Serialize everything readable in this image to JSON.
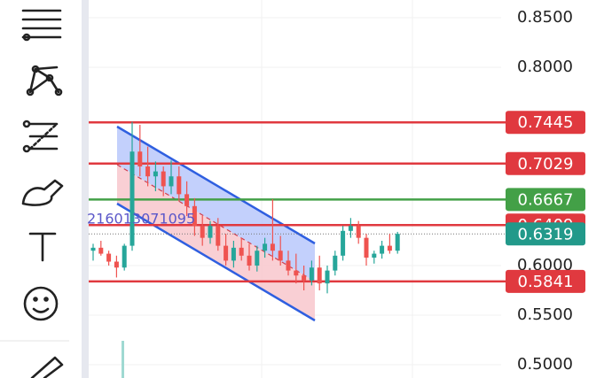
{
  "chart_data": {
    "type": "candlestick",
    "open": [
      0.615,
      0.618,
      0.612,
      0.604,
      0.598,
      0.62,
      0.715,
      0.7,
      0.69,
      0.695,
      0.68,
      0.69,
      0.672,
      0.66,
      0.64,
      0.628,
      0.64,
      0.62,
      0.605,
      0.618,
      0.61,
      0.6,
      0.615,
      0.622,
      0.615,
      0.605,
      0.595,
      0.59,
      0.585,
      0.598,
      0.582,
      0.595,
      0.61,
      0.635,
      0.64,
      0.628,
      0.608,
      0.612,
      0.62,
      0.615
    ],
    "high": [
      0.622,
      0.625,
      0.615,
      0.61,
      0.622,
      0.745,
      0.742,
      0.72,
      0.705,
      0.7,
      0.706,
      0.7,
      0.685,
      0.668,
      0.65,
      0.645,
      0.648,
      0.632,
      0.625,
      0.628,
      0.622,
      0.62,
      0.628,
      0.667,
      0.63,
      0.615,
      0.612,
      0.6,
      0.605,
      0.61,
      0.6,
      0.615,
      0.64,
      0.648,
      0.645,
      0.632,
      0.615,
      0.625,
      0.632,
      0.634
    ],
    "low": [
      0.605,
      0.61,
      0.6,
      0.588,
      0.595,
      0.615,
      0.69,
      0.68,
      0.675,
      0.67,
      0.672,
      0.665,
      0.65,
      0.63,
      0.62,
      0.622,
      0.615,
      0.6,
      0.598,
      0.605,
      0.595,
      0.594,
      0.608,
      0.605,
      0.6,
      0.59,
      0.582,
      0.575,
      0.58,
      0.575,
      0.572,
      0.59,
      0.605,
      0.628,
      0.622,
      0.6,
      0.602,
      0.607,
      0.612,
      0.612
    ],
    "close": [
      0.618,
      0.612,
      0.604,
      0.598,
      0.62,
      0.715,
      0.7,
      0.69,
      0.695,
      0.68,
      0.69,
      0.672,
      0.66,
      0.64,
      0.628,
      0.64,
      0.62,
      0.605,
      0.618,
      0.61,
      0.6,
      0.615,
      0.622,
      0.615,
      0.605,
      0.595,
      0.59,
      0.585,
      0.598,
      0.582,
      0.595,
      0.61,
      0.635,
      0.64,
      0.628,
      0.608,
      0.612,
      0.62,
      0.615,
      0.632
    ],
    "up_color": "#26a69a",
    "down_color": "#ef5350",
    "ylim": [
      0.4866,
      0.8679
    ],
    "yticks": [
      {
        "value": 0.85,
        "label": "0.8500"
      },
      {
        "value": 0.8,
        "label": "0.8000"
      },
      {
        "value": 0.6,
        "label": "0.6000"
      },
      {
        "value": 0.55,
        "label": "0.5500"
      },
      {
        "value": 0.5,
        "label": "0.5000"
      }
    ],
    "grid": true,
    "levels": [
      {
        "value": 0.7445,
        "color": "#e0393f"
      },
      {
        "value": 0.7029,
        "color": "#e0393f"
      },
      {
        "value": 0.6667,
        "color": "#43a047"
      },
      {
        "value": 0.6409,
        "color": "#e0393f"
      },
      {
        "value": 0.5841,
        "color": "#e0393f"
      }
    ],
    "last_price": 0.6319,
    "last_price_color": "#22998a",
    "annotation": "216013071095"
  }
}
